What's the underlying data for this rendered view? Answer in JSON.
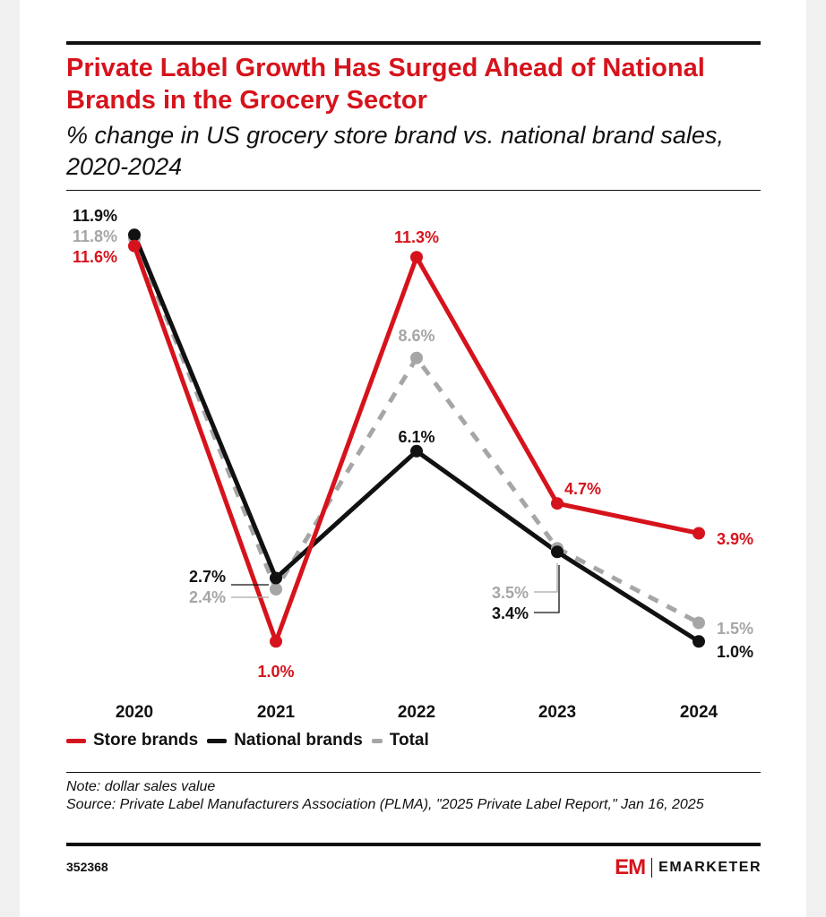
{
  "title": "Private Label Growth Has Surged Ahead of National Brands in the Grocery Sector",
  "subtitle": "% change in US grocery store brand vs. national brand sales, 2020-2024",
  "notes": {
    "note": "Note: dollar sales value",
    "source": "Source: Private Label Manufacturers Association (PLMA), \"2025 Private Label Report,\" Jan 16, 2025"
  },
  "chart_id": "352368",
  "brand": {
    "mark": "EM",
    "name": "EMARKETER"
  },
  "colors": {
    "store": "#d6131c",
    "national": "#111111",
    "total": "#a6a6a6"
  },
  "chart_data": {
    "type": "line",
    "title": "Private Label Growth Has Surged Ahead of National Brands in the Grocery Sector",
    "subtitle": "% change in US grocery store brand vs. national brand sales, 2020-2024",
    "x": [
      "2020",
      "2021",
      "2022",
      "2023",
      "2024"
    ],
    "ylim": [
      0,
      12
    ],
    "grid": false,
    "legend_position": "bottom-left",
    "series": [
      {
        "name": "Store brands",
        "color": "#d6131c",
        "style": "solid",
        "values": [
          11.6,
          1.0,
          11.3,
          4.7,
          3.9
        ],
        "labels": [
          "11.6%",
          "1.0%",
          "11.3%",
          "4.7%",
          "3.9%"
        ]
      },
      {
        "name": "National brands",
        "color": "#111111",
        "style": "solid",
        "values": [
          11.9,
          2.7,
          6.1,
          3.4,
          1.0
        ],
        "labels": [
          "11.9%",
          "2.7%",
          "6.1%",
          "3.4%",
          "1.0%"
        ]
      },
      {
        "name": "Total",
        "color": "#a6a6a6",
        "style": "dashed",
        "values": [
          11.8,
          2.4,
          8.6,
          3.5,
          1.5
        ],
        "labels": [
          "11.8%",
          "2.4%",
          "8.6%",
          "3.5%",
          "1.5%"
        ]
      }
    ]
  }
}
